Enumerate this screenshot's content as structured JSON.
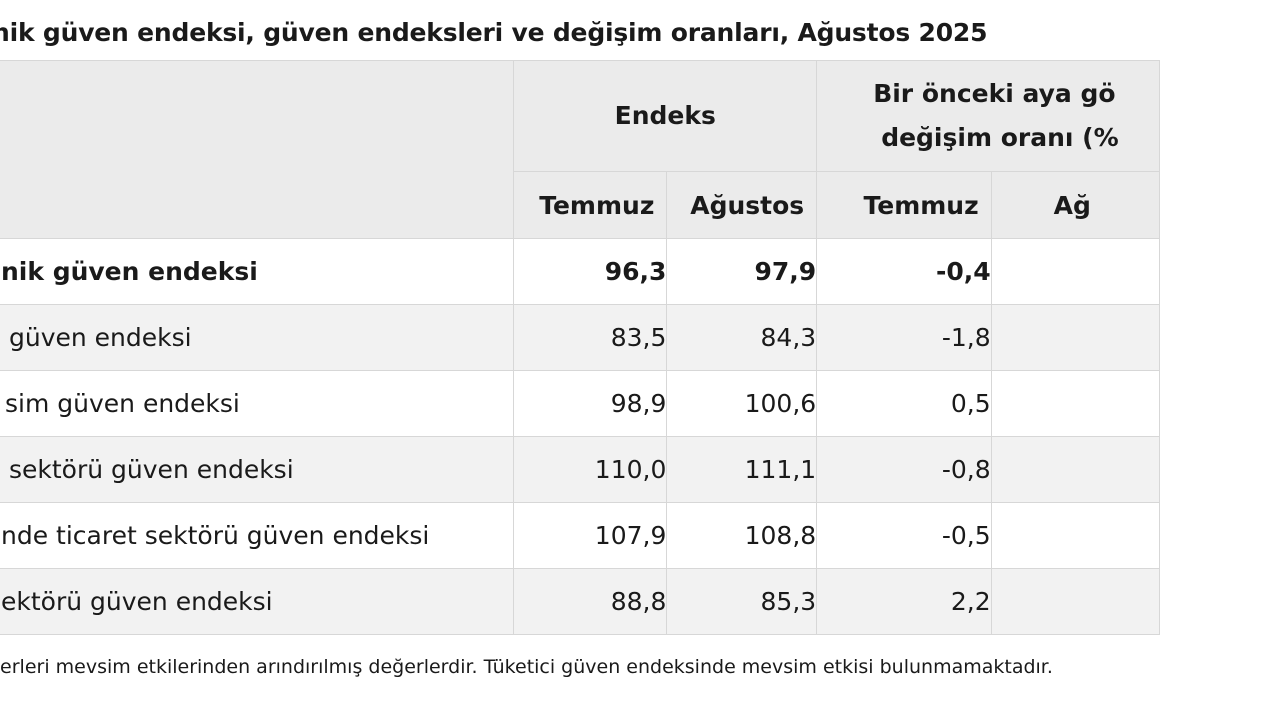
{
  "title": "nik güven endeksi, güven endeksleri ve değişim oranları, Ağustos 2025",
  "header": {
    "group_index": "Endeks",
    "group_change_line1": "Bir önceki aya gö",
    "group_change_line2": "değişim oranı (%",
    "col_temmuz": "Temmuz",
    "col_agustos": "Ağustos",
    "col_change_temmuz": "Temmuz",
    "col_change_agustos": "Ağ"
  },
  "rows": [
    {
      "label": "nik güven endeksi",
      "temmuz": "96,3",
      "agustos": "97,9",
      "chg_temmuz": "-0,4",
      "chg_agustos": ""
    },
    {
      "label": "güven endeksi",
      "temmuz": "83,5",
      "agustos": "84,3",
      "chg_temmuz": "-1,8",
      "chg_agustos": ""
    },
    {
      "label": "sim güven endeksi",
      "temmuz": "98,9",
      "agustos": "100,6",
      "chg_temmuz": "0,5",
      "chg_agustos": ""
    },
    {
      "label": "sektörü güven endeksi",
      "temmuz": "110,0",
      "agustos": "111,1",
      "chg_temmuz": "-0,8",
      "chg_agustos": ""
    },
    {
      "label": "nde ticaret sektörü güven endeksi",
      "temmuz": "107,9",
      "agustos": "108,8",
      "chg_temmuz": "-0,5",
      "chg_agustos": ""
    },
    {
      "label": "ektörü güven endeksi",
      "temmuz": "88,8",
      "agustos": "85,3",
      "chg_temmuz": "2,2",
      "chg_agustos": ""
    }
  ],
  "footnote": "ğerleri mevsim etkilerinden arındırılmış değerlerdir. Tüketici güven endeksinde mevsim etkisi bulunmamaktadır."
}
